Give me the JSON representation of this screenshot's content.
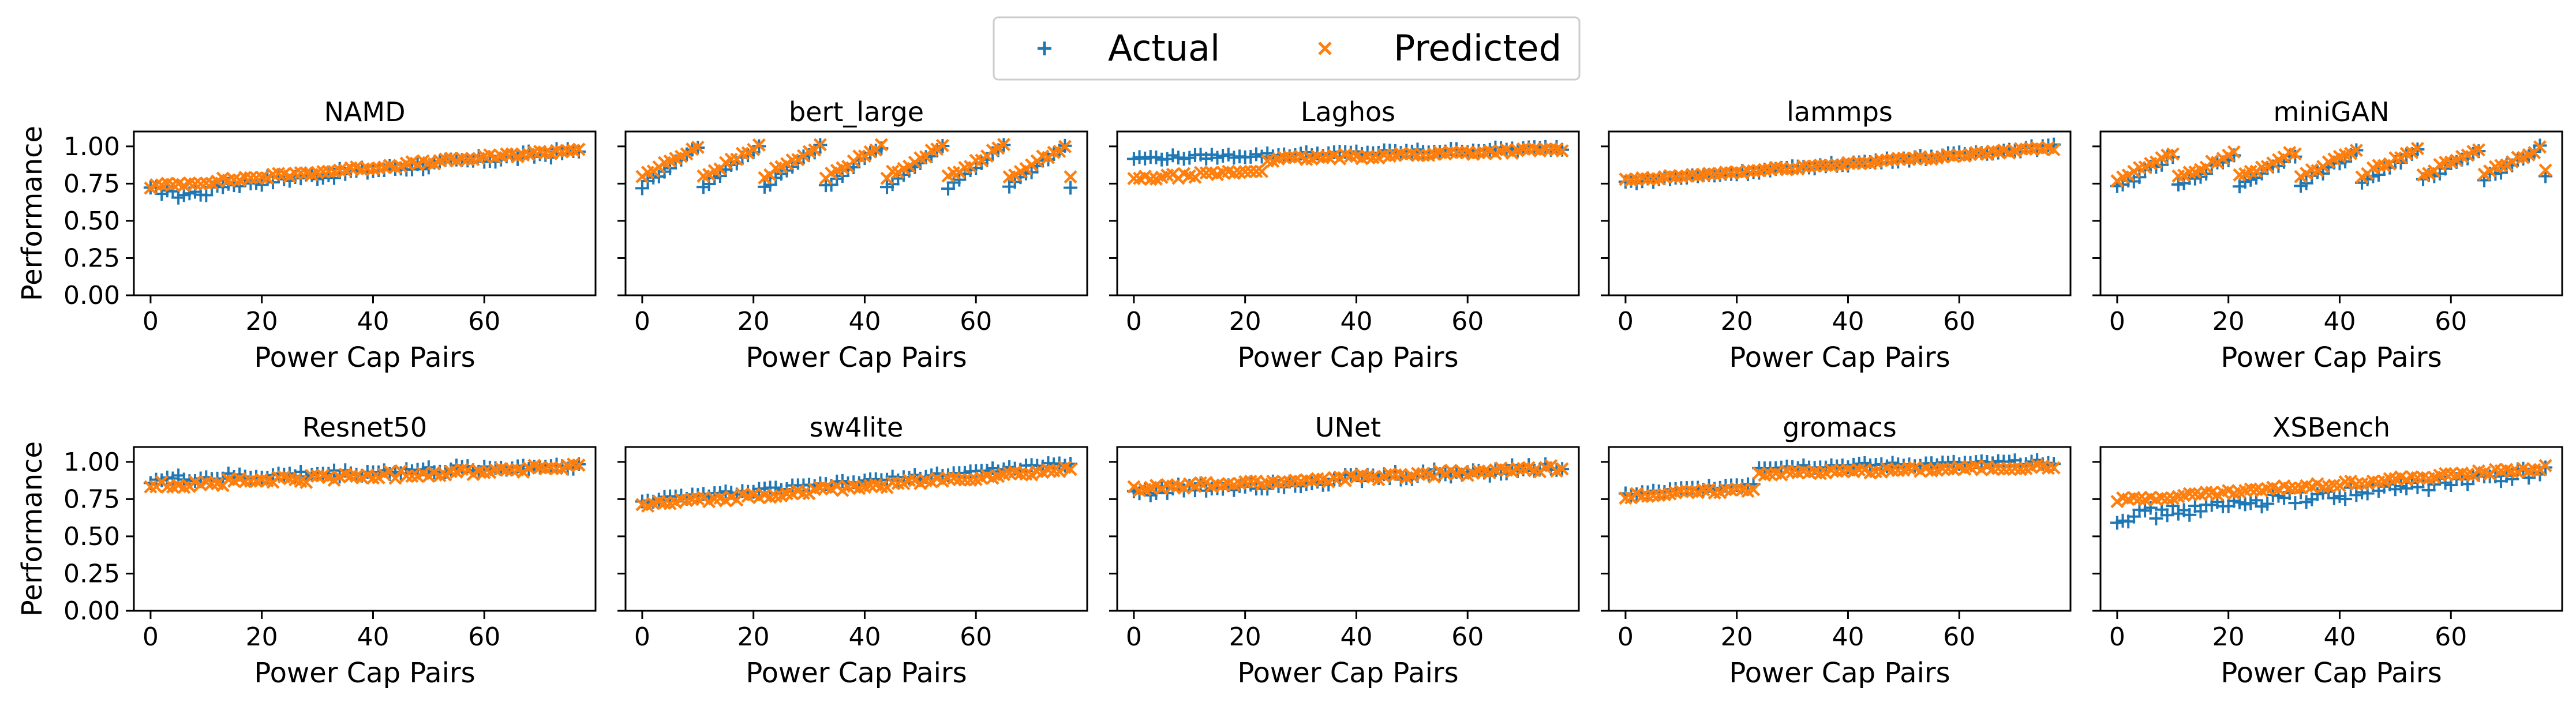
{
  "legend": {
    "placement": "top-center",
    "entries": [
      {
        "label": "Actual",
        "marker": "plus",
        "color": "#1f77b4"
      },
      {
        "label": "Predicted",
        "marker": "x",
        "color": "#ff7f0e"
      }
    ]
  },
  "chart_data": [
    {
      "type": "scatter",
      "title": "NAMD",
      "xlabel": "Power Cap Pairs",
      "ylabel": "Performance",
      "xlim": [
        -3,
        80
      ],
      "ylim": [
        0,
        1.1
      ],
      "xticks": [
        "0",
        "20",
        "40",
        "60"
      ],
      "yticks": [
        "0.00",
        "0.25",
        "0.50",
        "0.75",
        "1.00"
      ],
      "series": [
        {
          "name": "Actual",
          "shape": "namd_a"
        },
        {
          "name": "Predicted",
          "shape": "namd_p"
        }
      ]
    },
    {
      "type": "scatter",
      "title": "bert_large",
      "xlabel": "Power Cap Pairs",
      "ylabel": "",
      "xlim": [
        -3,
        80
      ],
      "ylim": [
        0,
        1.1
      ],
      "xticks": [
        "0",
        "20",
        "40",
        "60"
      ],
      "yticks": [],
      "series": [
        {
          "name": "Actual",
          "shape": "bert_a"
        },
        {
          "name": "Predicted",
          "shape": "bert_p"
        }
      ]
    },
    {
      "type": "scatter",
      "title": "Laghos",
      "xlabel": "Power Cap Pairs",
      "ylabel": "",
      "xlim": [
        -3,
        80
      ],
      "ylim": [
        0,
        1.1
      ],
      "xticks": [
        "0",
        "20",
        "40",
        "60"
      ],
      "yticks": [],
      "series": [
        {
          "name": "Actual",
          "shape": "laghos_a"
        },
        {
          "name": "Predicted",
          "shape": "laghos_p"
        }
      ]
    },
    {
      "type": "scatter",
      "title": "lammps",
      "xlabel": "Power Cap Pairs",
      "ylabel": "",
      "xlim": [
        -3,
        80
      ],
      "ylim": [
        0,
        1.1
      ],
      "xticks": [
        "0",
        "20",
        "40",
        "60"
      ],
      "yticks": [],
      "series": [
        {
          "name": "Actual",
          "shape": "lammps_a"
        },
        {
          "name": "Predicted",
          "shape": "lammps_p"
        }
      ]
    },
    {
      "type": "scatter",
      "title": "miniGAN",
      "xlabel": "Power Cap Pairs",
      "ylabel": "",
      "xlim": [
        -3,
        80
      ],
      "ylim": [
        0,
        1.1
      ],
      "xticks": [
        "0",
        "20",
        "40",
        "60"
      ],
      "yticks": [],
      "series": [
        {
          "name": "Actual",
          "shape": "minigan_a"
        },
        {
          "name": "Predicted",
          "shape": "minigan_p"
        }
      ]
    },
    {
      "type": "scatter",
      "title": "Resnet50",
      "xlabel": "Power Cap Pairs",
      "ylabel": "Performance",
      "xlim": [
        -3,
        80
      ],
      "ylim": [
        0,
        1.1
      ],
      "xticks": [
        "0",
        "20",
        "40",
        "60"
      ],
      "yticks": [
        "0.00",
        "0.25",
        "0.50",
        "0.75",
        "1.00"
      ],
      "series": [
        {
          "name": "Actual",
          "shape": "resnet_a"
        },
        {
          "name": "Predicted",
          "shape": "resnet_p"
        }
      ]
    },
    {
      "type": "scatter",
      "title": "sw4lite",
      "xlabel": "Power Cap Pairs",
      "ylabel": "",
      "xlim": [
        -3,
        80
      ],
      "ylim": [
        0,
        1.1
      ],
      "xticks": [
        "0",
        "20",
        "40",
        "60"
      ],
      "yticks": [],
      "series": [
        {
          "name": "Actual",
          "shape": "sw4_a"
        },
        {
          "name": "Predicted",
          "shape": "sw4_p"
        }
      ]
    },
    {
      "type": "scatter",
      "title": "UNet",
      "xlabel": "Power Cap Pairs",
      "ylabel": "",
      "xlim": [
        -3,
        80
      ],
      "ylim": [
        0,
        1.1
      ],
      "xticks": [
        "0",
        "20",
        "40",
        "60"
      ],
      "yticks": [],
      "series": [
        {
          "name": "Actual",
          "shape": "unet_a"
        },
        {
          "name": "Predicted",
          "shape": "unet_p"
        }
      ]
    },
    {
      "type": "scatter",
      "title": "gromacs",
      "xlabel": "Power Cap Pairs",
      "ylabel": "",
      "xlim": [
        -3,
        80
      ],
      "ylim": [
        0,
        1.1
      ],
      "xticks": [
        "0",
        "20",
        "40",
        "60"
      ],
      "yticks": [],
      "series": [
        {
          "name": "Actual",
          "shape": "gromacs_a"
        },
        {
          "name": "Predicted",
          "shape": "gromacs_p"
        }
      ]
    },
    {
      "type": "scatter",
      "title": "XSBench",
      "xlabel": "Power Cap Pairs",
      "ylabel": "",
      "xlim": [
        -3,
        80
      ],
      "ylim": [
        0,
        1.1
      ],
      "xticks": [
        "0",
        "20",
        "40",
        "60"
      ],
      "yticks": [],
      "series": [
        {
          "name": "Actual",
          "shape": "xsb_a"
        },
        {
          "name": "Predicted",
          "shape": "xsb_p"
        }
      ]
    }
  ]
}
